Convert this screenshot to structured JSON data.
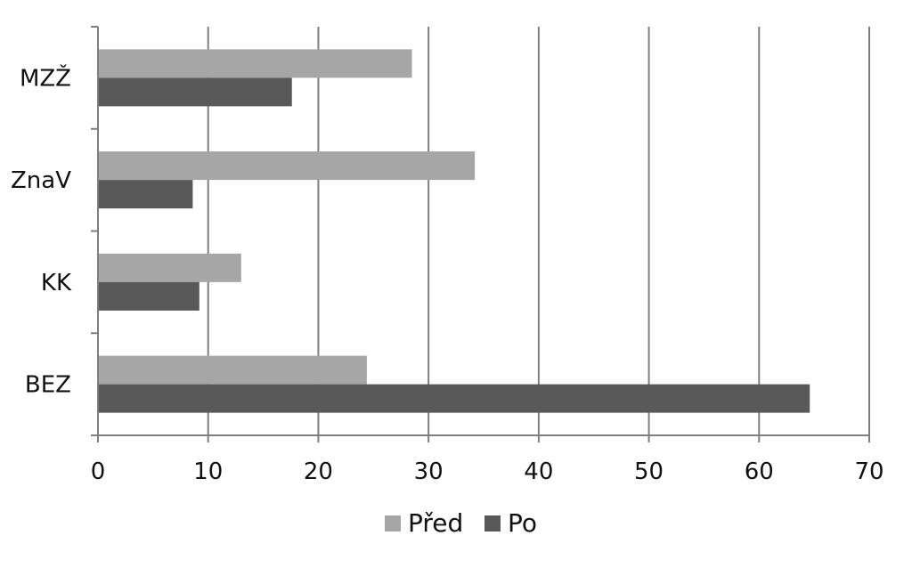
{
  "chart_data": {
    "type": "bar",
    "orientation": "horizontal",
    "categories": [
      "MZŽ",
      "ZnaV",
      "KK",
      "BEZ"
    ],
    "series": [
      {
        "name": "Před",
        "values": [
          28.5,
          34.2,
          13.0,
          24.4
        ],
        "color": "#a6a6a6"
      },
      {
        "name": "Po",
        "values": [
          17.6,
          8.6,
          9.2,
          64.6
        ],
        "color": "#595959"
      }
    ],
    "xlim": [
      0,
      70
    ],
    "xticks": [
      "0",
      "10",
      "20",
      "30",
      "40",
      "50",
      "60",
      "70"
    ],
    "grid": "vertical",
    "legend": "bottom",
    "title": "",
    "xlabel": "",
    "ylabel": ""
  }
}
